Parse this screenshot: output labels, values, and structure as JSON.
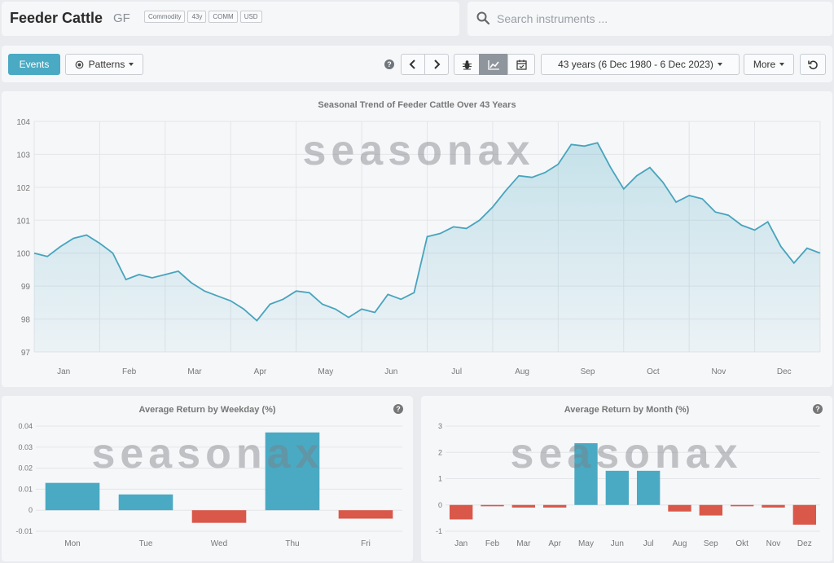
{
  "header": {
    "title": "Feeder Cattle",
    "symbol": "GF",
    "tags": [
      "Commodity",
      "43y",
      "COMM",
      "USD"
    ]
  },
  "search": {
    "placeholder": "Search instruments ..."
  },
  "toolbar": {
    "events_label": "Events",
    "patterns_label": "Patterns",
    "help_symbol": "?",
    "range_label": "43 years (6 Dec 1980 - 6 Dec 2023)",
    "more_label": "More"
  },
  "watermark": "seasonax",
  "colors": {
    "accent": "#4aaac3",
    "line": "#47a4bd",
    "negative": "#d9584a"
  },
  "charts": [
    {
      "title": "Seasonal Trend of Feeder Cattle Over 43 Years",
      "type": "area",
      "ylim": [
        97,
        104
      ],
      "yticks": [
        97,
        98,
        99,
        100,
        101,
        102,
        103,
        104
      ],
      "months": [
        "Jan",
        "Feb",
        "Mar",
        "Apr",
        "May",
        "Jun",
        "Jul",
        "Aug",
        "Sep",
        "Oct",
        "Nov",
        "Dec"
      ],
      "x": [
        0,
        0.2,
        0.4,
        0.6,
        0.8,
        1.0,
        1.2,
        1.4,
        1.6,
        1.8,
        2.0,
        2.2,
        2.4,
        2.6,
        2.8,
        3.0,
        3.2,
        3.4,
        3.6,
        3.8,
        4.0,
        4.2,
        4.4,
        4.6,
        4.8,
        5.0,
        5.2,
        5.4,
        5.6,
        5.8,
        6.0,
        6.2,
        6.4,
        6.6,
        6.8,
        7.0,
        7.2,
        7.4,
        7.6,
        7.8,
        8.0,
        8.2,
        8.4,
        8.6,
        8.8,
        9.0,
        9.2,
        9.4,
        9.6,
        9.8,
        10.0,
        10.2,
        10.4,
        10.6,
        10.8,
        11.0,
        11.2,
        11.4,
        11.6,
        11.8,
        12.0
      ],
      "y": [
        100.0,
        99.9,
        100.2,
        100.45,
        100.55,
        100.3,
        100.0,
        99.2,
        99.35,
        99.25,
        99.35,
        99.45,
        99.1,
        98.85,
        98.7,
        98.55,
        98.3,
        97.95,
        98.45,
        98.6,
        98.85,
        98.8,
        98.45,
        98.3,
        98.05,
        98.3,
        98.2,
        98.75,
        98.6,
        98.8,
        100.5,
        100.6,
        100.8,
        100.75,
        101.0,
        101.4,
        101.9,
        102.35,
        102.3,
        102.45,
        102.7,
        103.3,
        103.25,
        103.35,
        102.6,
        101.95,
        102.35,
        102.6,
        102.15,
        101.55,
        101.75,
        101.65,
        101.25,
        101.15,
        100.85,
        100.7,
        100.95,
        100.2,
        99.7,
        100.15,
        100.0
      ]
    },
    {
      "title": "Average Return by Weekday (%)",
      "type": "bar",
      "categories": [
        "Mon",
        "Tue",
        "Wed",
        "Thu",
        "Fri"
      ],
      "values": [
        0.013,
        0.0075,
        -0.006,
        0.037,
        -0.004
      ],
      "ylim": [
        -0.01,
        0.04
      ],
      "yticks": [
        -0.01,
        0,
        0.01,
        0.02,
        0.03,
        0.04
      ],
      "ytick_labels": [
        "-0.01",
        "0",
        "0.01",
        "0.02",
        "0.03",
        "0.04"
      ]
    },
    {
      "title": "Average Return by Month (%)",
      "type": "bar",
      "categories": [
        "Jan",
        "Feb",
        "Mar",
        "Apr",
        "May",
        "Jun",
        "Jul",
        "Aug",
        "Sep",
        "Okt",
        "Nov",
        "Dez"
      ],
      "values": [
        -0.55,
        -0.05,
        -0.1,
        -0.1,
        2.35,
        1.3,
        1.3,
        -0.25,
        -0.4,
        -0.05,
        -0.1,
        -0.75
      ],
      "ylim": [
        -1,
        3
      ],
      "yticks": [
        -1,
        0,
        1,
        2,
        3
      ],
      "ytick_labels": [
        "-1",
        "0",
        "1",
        "2",
        "3"
      ]
    }
  ]
}
